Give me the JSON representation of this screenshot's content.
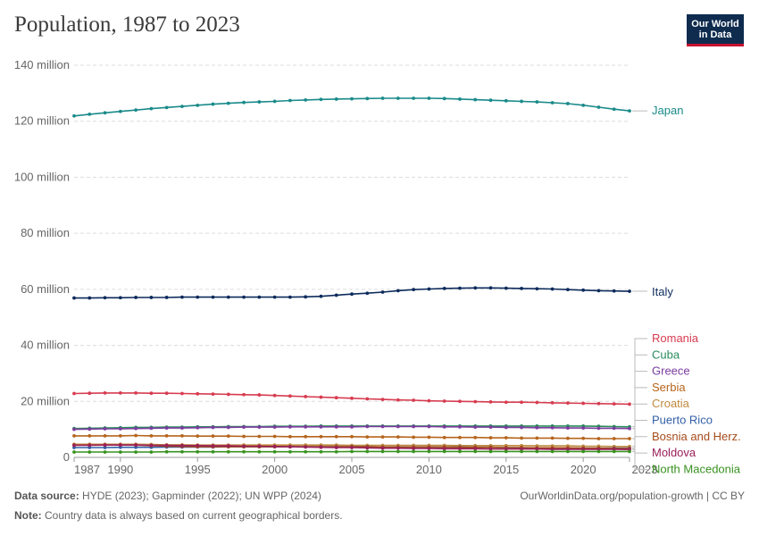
{
  "title": "Population, 1987 to 2023",
  "logo": {
    "line1": "Our World",
    "line2": "in Data"
  },
  "footer": {
    "source_label": "Data source:",
    "source_text": "HYDE (2023); Gapminder (2022); UN WPP (2024)",
    "note_label": "Note:",
    "note_text": "Country data is always based on current geographical borders.",
    "url_text": "OurWorldinData.org/population-growth | CC BY"
  },
  "chart_data": {
    "type": "line",
    "title": "Population, 1987 to 2023",
    "xlim": [
      1987,
      2023
    ],
    "ylim": [
      0,
      140000000
    ],
    "y_ticks": [
      0,
      20000000,
      40000000,
      60000000,
      80000000,
      100000000,
      120000000,
      140000000
    ],
    "y_tick_labels": [
      "0",
      "20 million",
      "40 million",
      "60 million",
      "80 million",
      "100 million",
      "120 million",
      "140 million"
    ],
    "x_ticks": [
      1987,
      1990,
      1995,
      2000,
      2005,
      2010,
      2015,
      2020,
      2023
    ],
    "x_tick_labels": [
      "1987",
      "1990",
      "1995",
      "2000",
      "2005",
      "2010",
      "2015",
      "2020",
      "2023"
    ],
    "grid": "horizontal dashed",
    "legend": "right, line-end labels",
    "x": [
      1987,
      1988,
      1989,
      1990,
      1991,
      1992,
      1993,
      1994,
      1995,
      1996,
      1997,
      1998,
      1999,
      2000,
      2001,
      2002,
      2003,
      2004,
      2005,
      2006,
      2007,
      2008,
      2009,
      2010,
      2011,
      2012,
      2013,
      2014,
      2015,
      2016,
      2017,
      2018,
      2019,
      2020,
      2021,
      2022,
      2023
    ],
    "series": [
      {
        "name": "Japan",
        "color": "#1a8a8a",
        "values": [
          121900000,
          122500000,
          123000000,
          123500000,
          124000000,
          124500000,
          124900000,
          125300000,
          125700000,
          126100000,
          126400000,
          126700000,
          126900000,
          127100000,
          127400000,
          127600000,
          127800000,
          127900000,
          128000000,
          128100000,
          128200000,
          128200000,
          128200000,
          128200000,
          128100000,
          127900000,
          127700000,
          127500000,
          127300000,
          127100000,
          126900000,
          126600000,
          126300000,
          125700000,
          125000000,
          124300000,
          123700000
        ]
      },
      {
        "name": "Italy",
        "color": "#0d2b5c",
        "values": [
          56900000,
          56900000,
          57000000,
          57000000,
          57100000,
          57100000,
          57100000,
          57200000,
          57200000,
          57200000,
          57200000,
          57200000,
          57200000,
          57200000,
          57200000,
          57300000,
          57500000,
          57900000,
          58300000,
          58600000,
          59000000,
          59500000,
          59900000,
          60100000,
          60300000,
          60400000,
          60500000,
          60500000,
          60400000,
          60300000,
          60200000,
          60100000,
          59900000,
          59700000,
          59500000,
          59400000,
          59300000
        ]
      },
      {
        "name": "Romania",
        "color": "#d73c50",
        "values": [
          22800000,
          22900000,
          23000000,
          23000000,
          23000000,
          22900000,
          22900000,
          22800000,
          22700000,
          22600000,
          22500000,
          22400000,
          22300000,
          22100000,
          21900000,
          21700000,
          21500000,
          21300000,
          21100000,
          20900000,
          20700000,
          20500000,
          20400000,
          20200000,
          20100000,
          20000000,
          19900000,
          19800000,
          19700000,
          19700000,
          19600000,
          19500000,
          19400000,
          19300000,
          19200000,
          19100000,
          19000000
        ]
      },
      {
        "name": "Cuba",
        "color": "#2a8c5b",
        "values": [
          10300000,
          10400000,
          10500000,
          10600000,
          10700000,
          10700000,
          10800000,
          10800000,
          10900000,
          10900000,
          11000000,
          11000000,
          11000000,
          11100000,
          11100000,
          11100000,
          11200000,
          11200000,
          11200000,
          11200000,
          11200000,
          11200000,
          11200000,
          11200000,
          11200000,
          11200000,
          11200000,
          11200000,
          11200000,
          11200000,
          11200000,
          11200000,
          11200000,
          11200000,
          11100000,
          11000000,
          10900000
        ]
      },
      {
        "name": "Greece",
        "color": "#7b3d9e",
        "values": [
          10000000,
          10100000,
          10200000,
          10200000,
          10300000,
          10400000,
          10500000,
          10500000,
          10600000,
          10700000,
          10700000,
          10800000,
          10800000,
          10800000,
          10900000,
          10900000,
          10900000,
          10900000,
          10900000,
          11000000,
          11000000,
          11000000,
          11000000,
          11000000,
          10900000,
          10900000,
          10800000,
          10800000,
          10700000,
          10700000,
          10600000,
          10600000,
          10500000,
          10500000,
          10400000,
          10400000,
          10300000
        ]
      },
      {
        "name": "Serbia",
        "color": "#b5651d",
        "values": [
          7700000,
          7700000,
          7700000,
          7700000,
          7800000,
          7700000,
          7700000,
          7700000,
          7600000,
          7600000,
          7600000,
          7500000,
          7500000,
          7500000,
          7400000,
          7400000,
          7400000,
          7400000,
          7400000,
          7300000,
          7300000,
          7300000,
          7200000,
          7200000,
          7100000,
          7100000,
          7100000,
          7000000,
          7000000,
          6900000,
          6900000,
          6900000,
          6800000,
          6800000,
          6700000,
          6700000,
          6700000
        ]
      },
      {
        "name": "Croatia",
        "color": "#c0893f",
        "values": [
          4700000,
          4700000,
          4700000,
          4700000,
          4700000,
          4600000,
          4500000,
          4500000,
          4400000,
          4400000,
          4400000,
          4400000,
          4400000,
          4400000,
          4400000,
          4400000,
          4400000,
          4400000,
          4300000,
          4300000,
          4300000,
          4300000,
          4300000,
          4300000,
          4300000,
          4200000,
          4200000,
          4200000,
          4200000,
          4200000,
          4100000,
          4100000,
          4100000,
          4000000,
          4000000,
          3900000,
          3900000
        ]
      },
      {
        "name": "Puerto Rico",
        "color": "#3360a9",
        "values": [
          3500000,
          3500000,
          3500000,
          3600000,
          3600000,
          3600000,
          3700000,
          3700000,
          3700000,
          3700000,
          3800000,
          3800000,
          3800000,
          3800000,
          3800000,
          3800000,
          3800000,
          3800000,
          3800000,
          3800000,
          3700000,
          3700000,
          3700000,
          3700000,
          3700000,
          3700000,
          3600000,
          3600000,
          3500000,
          3400000,
          3400000,
          3300000,
          3300000,
          3300000,
          3300000,
          3300000,
          3300000
        ]
      },
      {
        "name": "Bosnia and Herz.",
        "color": "#a64b1a",
        "values": [
          4400000,
          4400000,
          4400000,
          4400000,
          4400000,
          4200000,
          4000000,
          3900000,
          3800000,
          3800000,
          3800000,
          3800000,
          3800000,
          3800000,
          3800000,
          3800000,
          3800000,
          3800000,
          3800000,
          3800000,
          3700000,
          3700000,
          3700000,
          3700000,
          3700000,
          3600000,
          3600000,
          3600000,
          3500000,
          3500000,
          3400000,
          3400000,
          3400000,
          3300000,
          3300000,
          3200000,
          3200000
        ]
      },
      {
        "name": "Moldova",
        "color": "#9a1f5a",
        "values": [
          4300000,
          4300000,
          4400000,
          4400000,
          4400000,
          4300000,
          4300000,
          4200000,
          4200000,
          4100000,
          4100000,
          4000000,
          4000000,
          3900000,
          3800000,
          3700000,
          3600000,
          3500000,
          3500000,
          3400000,
          3300000,
          3300000,
          3200000,
          3200000,
          3100000,
          3100000,
          3100000,
          3000000,
          3000000,
          3000000,
          3000000,
          2900000,
          2900000,
          2900000,
          2900000,
          2900000,
          2800000
        ]
      },
      {
        "name": "North Macedonia",
        "color": "#38921f",
        "values": [
          1900000,
          1900000,
          1900000,
          1900000,
          1900000,
          1900000,
          2000000,
          2000000,
          2000000,
          2000000,
          2000000,
          2000000,
          2000000,
          2000000,
          2000000,
          2000000,
          2000000,
          2000000,
          2100000,
          2100000,
          2100000,
          2100000,
          2100000,
          2100000,
          2100000,
          2100000,
          2100000,
          2100000,
          2100000,
          2100000,
          2100000,
          2100000,
          2100000,
          2100000,
          2100000,
          2100000,
          2100000
        ]
      }
    ]
  }
}
